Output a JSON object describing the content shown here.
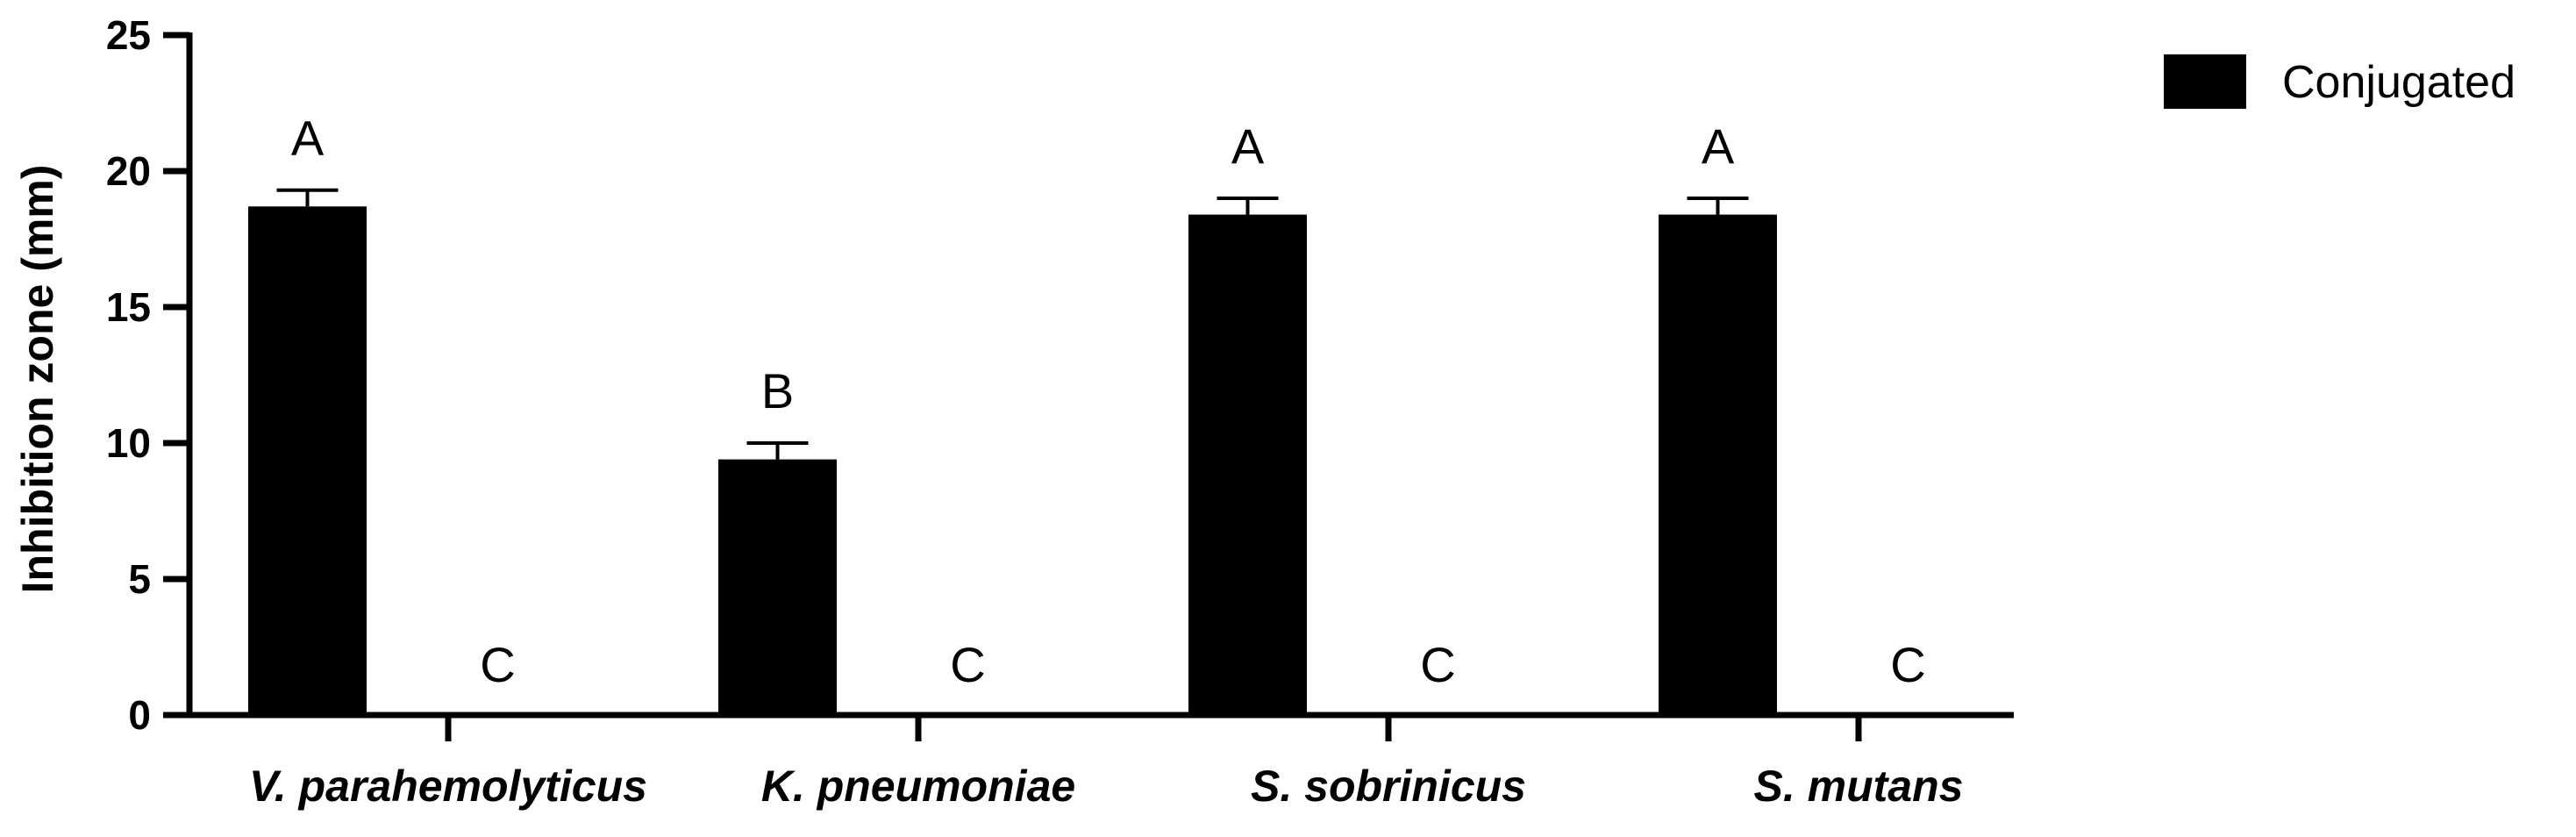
{
  "chart_data": {
    "type": "bar",
    "ylabel": "Inhibition zone (mm)",
    "xlabel": "",
    "ylim": [
      0,
      25
    ],
    "yticks": [
      0,
      5,
      10,
      15,
      20,
      25
    ],
    "categories": [
      "V. parahemolyticus",
      "K. pneumoniae",
      "S. sobrinicus",
      "S. mutans"
    ],
    "series": [
      {
        "name": "Conjugated",
        "color": "#000000",
        "values": [
          18.7,
          9.4,
          18.4,
          18.4
        ],
        "errors": [
          0.6,
          0.6,
          0.6,
          0.6
        ],
        "labels": [
          "A",
          "B",
          "A",
          "A"
        ]
      },
      {
        "values": [
          0,
          0,
          0,
          0
        ],
        "labels": [
          "C",
          "C",
          "C",
          "C"
        ]
      }
    ],
    "legend": {
      "placement": "top-right"
    },
    "grid": false
  }
}
